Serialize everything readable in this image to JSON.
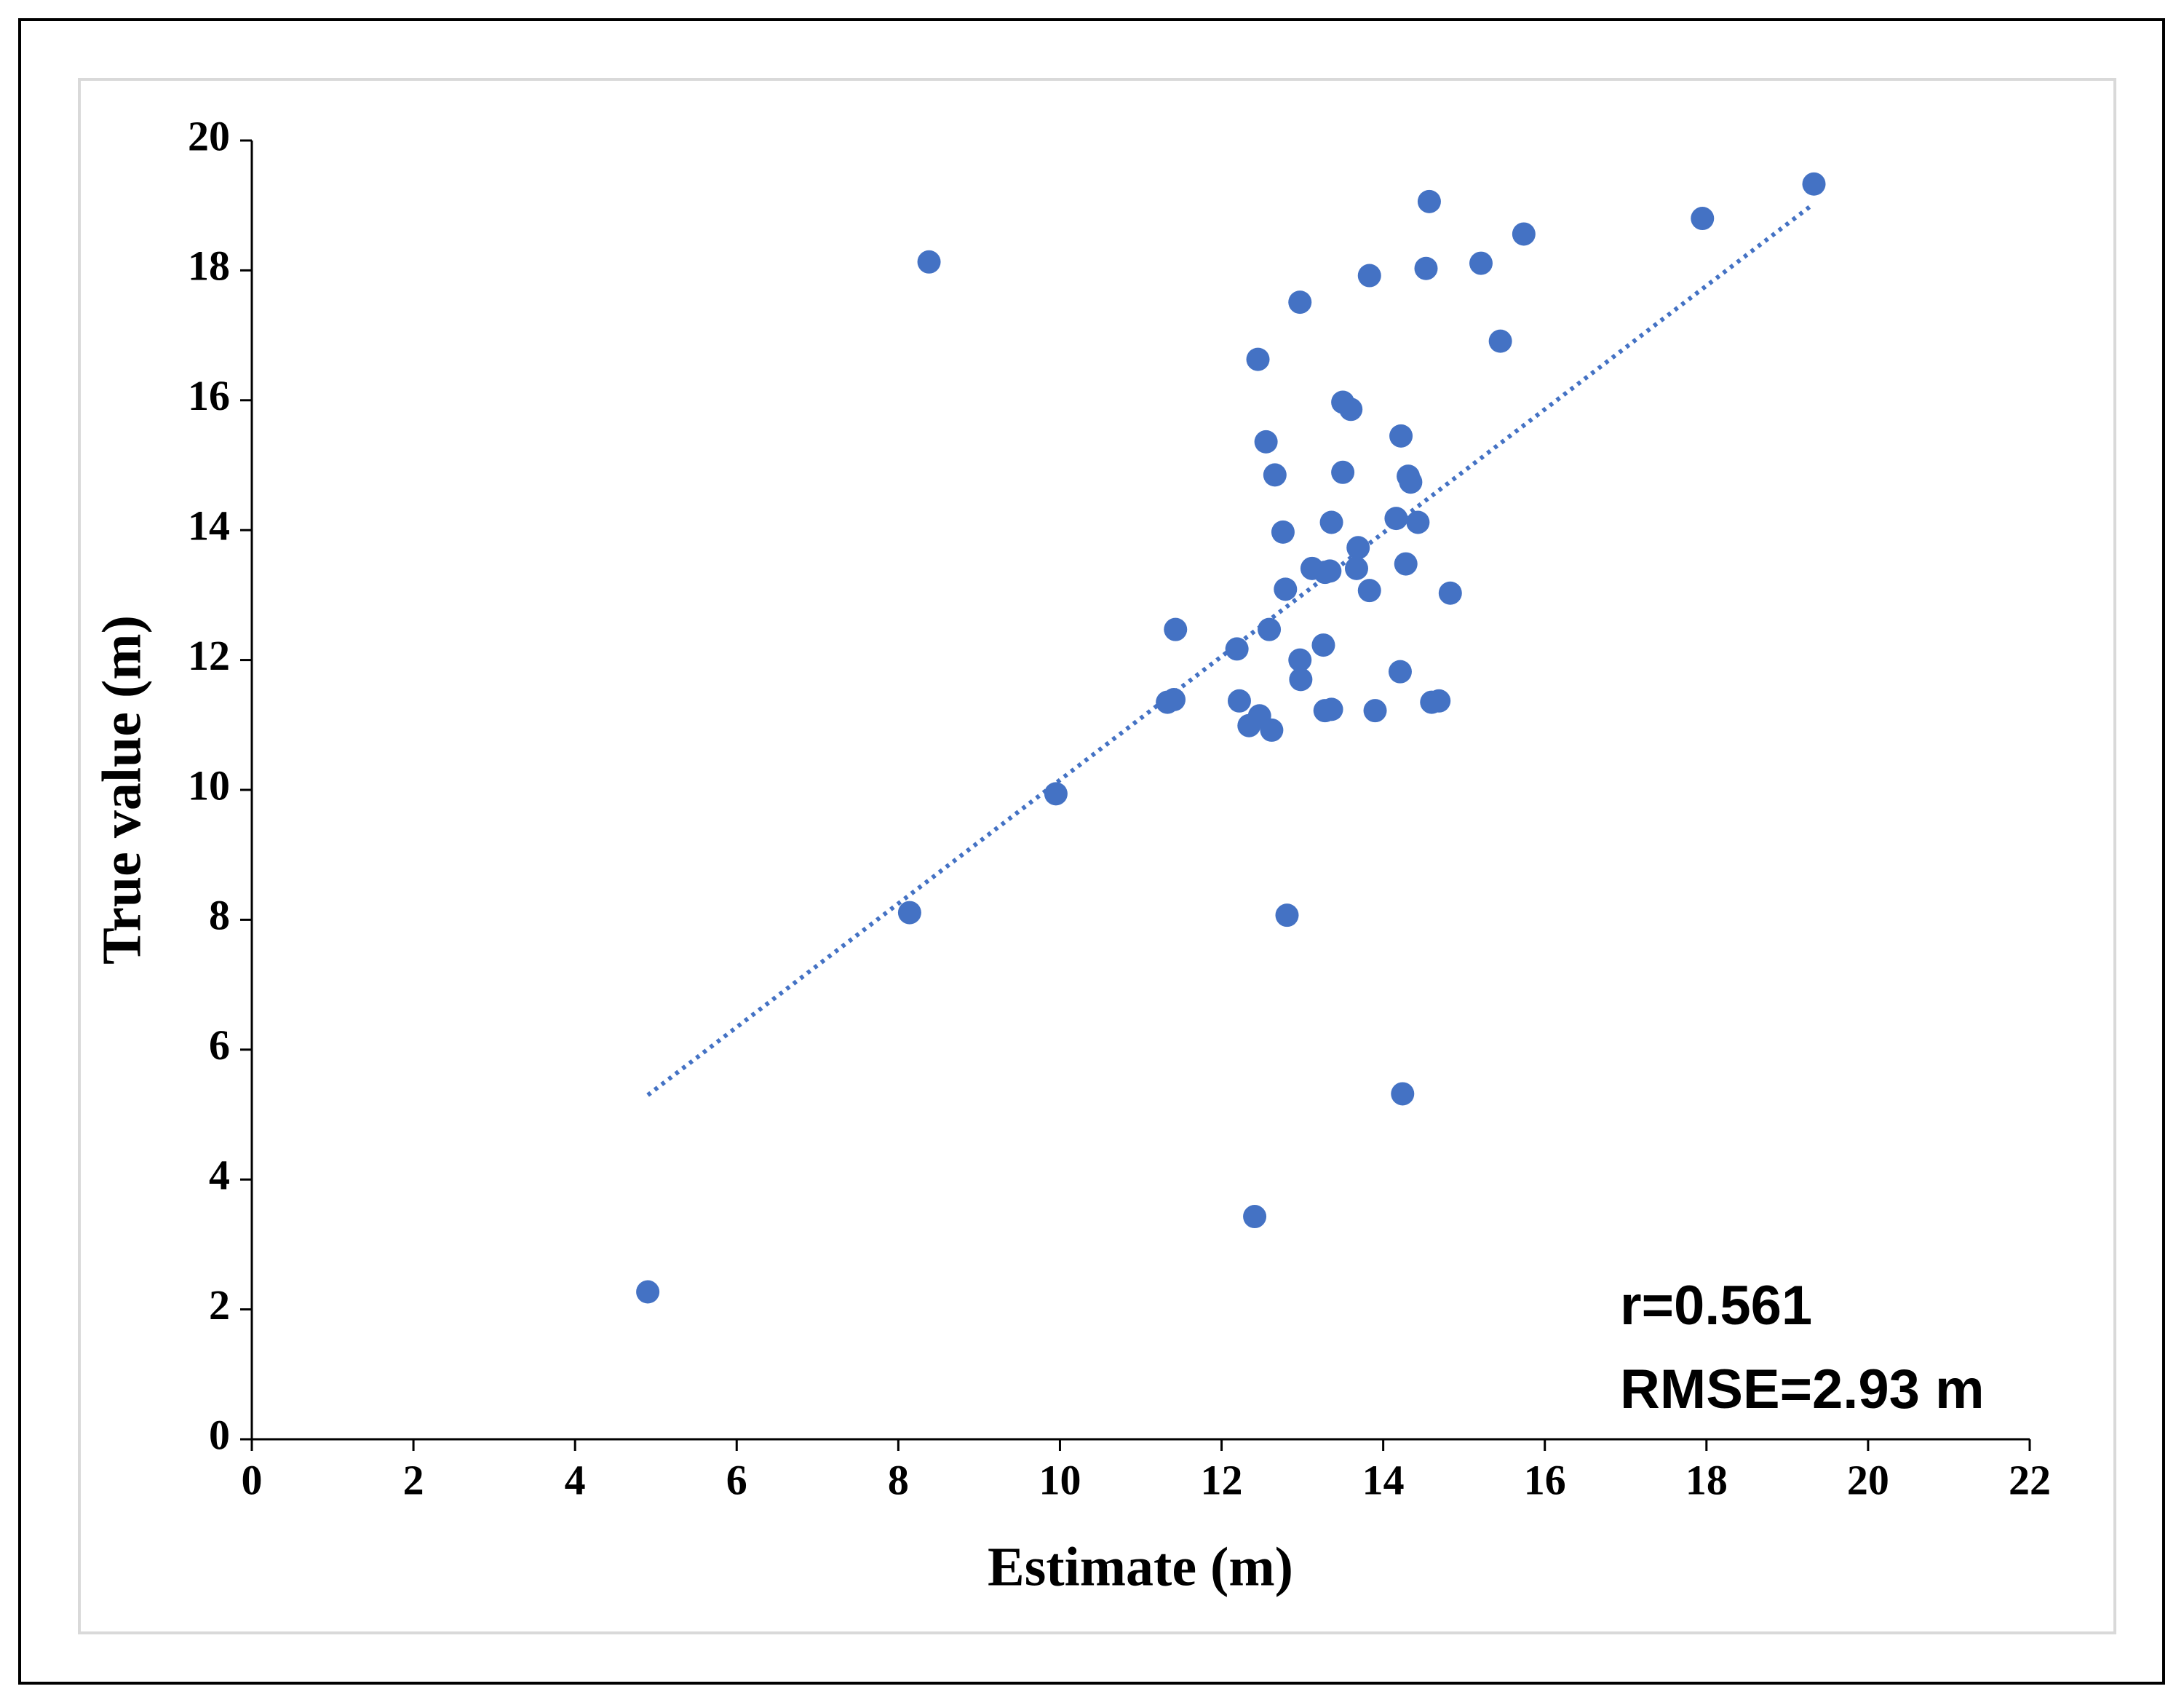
{
  "chart_data": {
    "type": "scatter",
    "x_label": "Estimate (m)",
    "y_label": "True value (m)",
    "annotations": [
      "r=0.561",
      "RMSE=2.93 m"
    ],
    "color": "#4472c4",
    "x": [
      4.9,
      8.38,
      8.14,
      9.95,
      11.33,
      11.41,
      11.43,
      12.19,
      12.22,
      12.34,
      12.47,
      12.62,
      12.59,
      12.45,
      12.55,
      12.66,
      12.76,
      12.79,
      12.81,
      12.41,
      12.97,
      12.97,
      12.98,
      13.12,
      13.26,
      13.28,
      13.28,
      13.36,
      13.36,
      13.34,
      13.5,
      13.5,
      13.6,
      13.69,
      13.67,
      13.83,
      13.83,
      13.9,
      14.16,
      14.22,
      14.21,
      14.24,
      14.28,
      14.31,
      14.34,
      14.43,
      14.53,
      14.57,
      14.6,
      14.69,
      14.83,
      15.21,
      15.45,
      15.74,
      17.95,
      19.33
    ],
    "values": [
      2.27,
      18.13,
      8.11,
      9.94,
      11.35,
      11.39,
      12.47,
      12.17,
      11.37,
      10.99,
      11.14,
      10.92,
      12.47,
      16.63,
      15.36,
      14.85,
      13.97,
      13.09,
      8.07,
      3.43,
      17.51,
      12.0,
      11.7,
      13.41,
      12.23,
      13.35,
      11.22,
      11.24,
      14.12,
      13.37,
      14.89,
      15.97,
      15.86,
      13.73,
      13.41,
      17.92,
      13.07,
      11.22,
      14.18,
      15.45,
      11.82,
      5.32,
      13.48,
      14.83,
      14.74,
      14.12,
      18.03,
      19.06,
      11.35,
      11.37,
      13.03,
      18.11,
      16.91,
      18.56,
      18.8,
      19.33
    ],
    "trendline": {
      "x": [
        4.9,
        19.3
      ],
      "values": [
        5.3,
        19.0
      ]
    },
    "xlim": [
      0,
      22
    ],
    "xticks": [
      0,
      2,
      4,
      6,
      8,
      10,
      12,
      14,
      16,
      18,
      20,
      22
    ],
    "ylim": [
      0,
      20
    ],
    "yticks": [
      0,
      2,
      4,
      6,
      8,
      10,
      12,
      14,
      16,
      18,
      20
    ]
  }
}
